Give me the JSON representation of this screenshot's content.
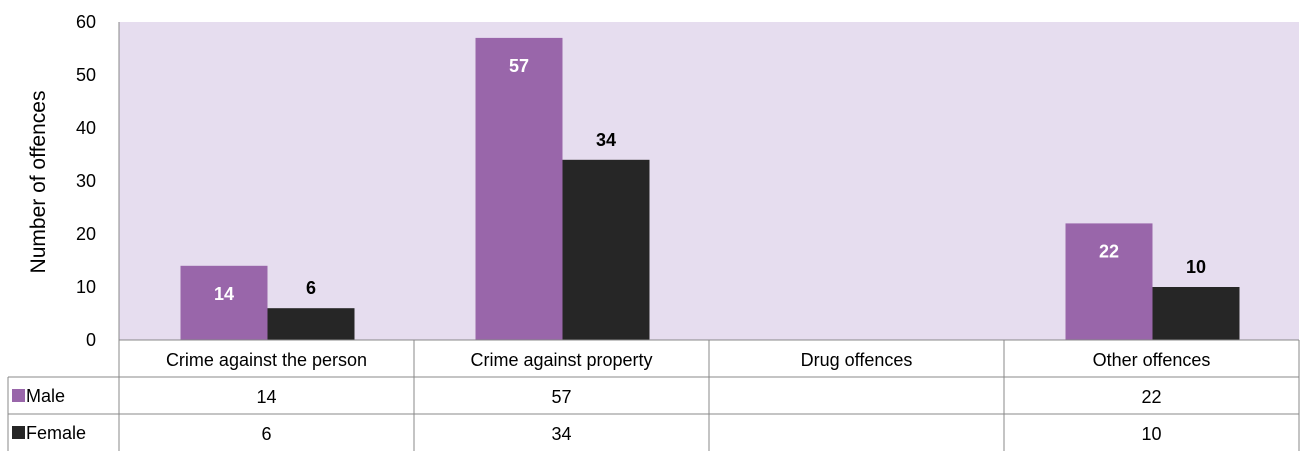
{
  "chart_data": {
    "type": "bar",
    "categories": [
      "Crime against the person",
      "Crime against property",
      "Drug offences",
      "Other offences"
    ],
    "series": [
      {
        "name": "Male",
        "values": [
          14,
          57,
          null,
          22
        ],
        "color": "#9966AA",
        "label_color": "#ffffff"
      },
      {
        "name": "Female",
        "values": [
          6,
          34,
          null,
          10
        ],
        "color": "#262626",
        "label_color": "#000000"
      }
    ],
    "ylabel": "Number of offences",
    "ylim": [
      0,
      60
    ],
    "yticks": [
      0,
      10,
      20,
      30,
      40,
      50,
      60
    ],
    "plot_background": "#E6DDEF",
    "data_table": true,
    "grid": false
  }
}
